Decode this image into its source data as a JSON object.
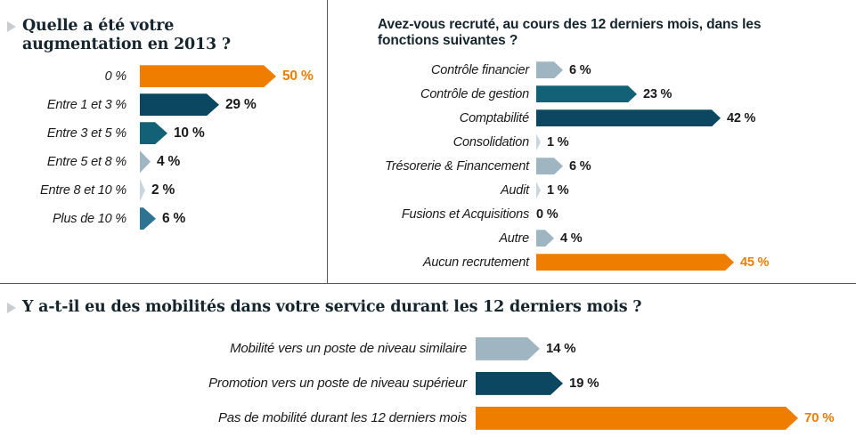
{
  "palette": {
    "orange": "#EF7D00",
    "navy": "#0B4760",
    "teal": "#136176",
    "mid_teal": "#2E7391",
    "steel_blue": "#9FB5C2",
    "pale_blue": "#C9D6DD",
    "title_text": "#15252E",
    "body_text": "#1A1A1A",
    "divider": "#55595C",
    "bullet": "#C9CDD0"
  },
  "unit": "%",
  "chart_data": [
    {
      "type": "bar",
      "orientation": "horizontal",
      "title": "Quelle a été votre augmentation en 2013 ?",
      "has_bullet": true,
      "categories": [
        "0 %",
        "Entre 1 et 3 %",
        "Entre 3 et 5 %",
        "Entre 5 et 8 %",
        "Entre 8 et 10 %",
        "Plus de 10 %"
      ],
      "values": [
        50,
        29,
        10,
        4,
        2,
        6
      ],
      "value_labels": [
        "50 %",
        "29 %",
        "10 %",
        "4 %",
        "2 %",
        "6 %"
      ],
      "bar_colors": [
        "orange",
        "navy",
        "teal",
        "steel_blue",
        "pale_blue",
        "mid_teal"
      ],
      "legend": "none",
      "grid": false,
      "axis_labels": "none"
    },
    {
      "type": "bar",
      "orientation": "horizontal",
      "title": "Avez-vous recruté, au cours des 12 derniers mois, dans les fonctions suivantes ?",
      "has_bullet": false,
      "categories": [
        "Contrôle financier",
        "Contrôle de gestion",
        "Comptabilité",
        "Consolidation",
        "Trésorerie & Financement",
        "Audit",
        "Fusions et Acquisitions",
        "Autre",
        "Aucun recrutement"
      ],
      "values": [
        6,
        23,
        42,
        1,
        6,
        1,
        0,
        4,
        45
      ],
      "value_labels": [
        "6 %",
        "23 %",
        "42 %",
        "1 %",
        "6 %",
        "1 %",
        "0 %",
        "4 %",
        "45 %"
      ],
      "bar_colors": [
        "steel_blue",
        "teal",
        "navy",
        "pale_blue",
        "steel_blue",
        "pale_blue",
        "none",
        "steel_blue",
        "orange"
      ],
      "legend": "none",
      "grid": false,
      "axis_labels": "none"
    },
    {
      "type": "bar",
      "orientation": "horizontal",
      "title": "Y a-t-il eu des mobilités dans votre service durant les 12 derniers mois ?",
      "has_bullet": true,
      "categories": [
        "Mobilité vers un poste de niveau similaire",
        "Promotion vers un poste de niveau supérieur",
        "Pas de mobilité durant les 12 derniers mois"
      ],
      "values": [
        14,
        19,
        70
      ],
      "value_labels": [
        "14 %",
        "19 %",
        "70 %"
      ],
      "bar_colors": [
        "steel_blue",
        "navy",
        "orange"
      ],
      "legend": "none",
      "grid": false,
      "axis_labels": "none"
    }
  ]
}
